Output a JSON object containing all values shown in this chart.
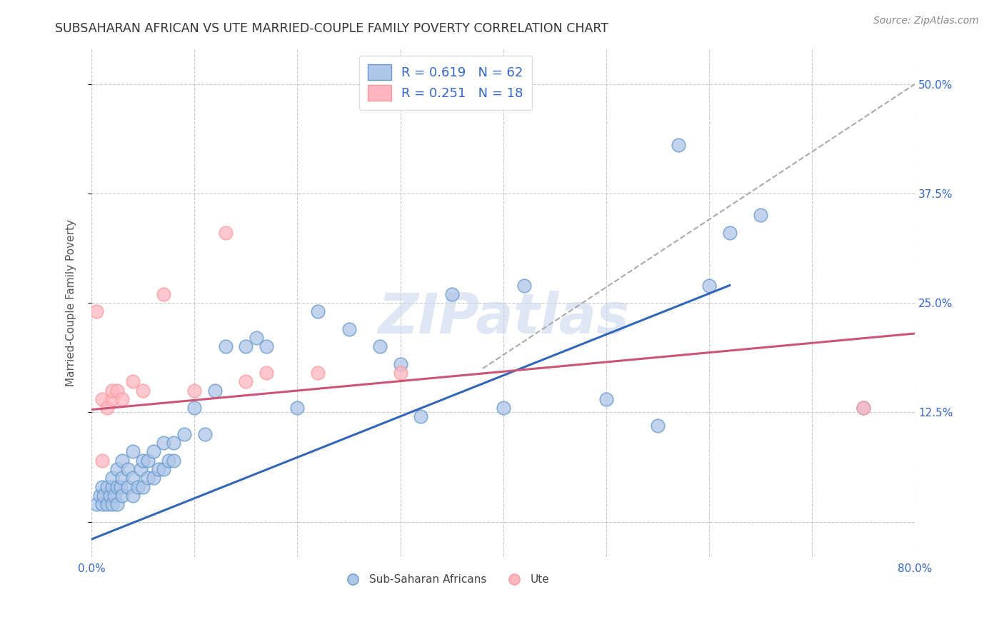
{
  "title": "SUBSAHARAN AFRICAN VS UTE MARRIED-COUPLE FAMILY POVERTY CORRELATION CHART",
  "source": "Source: ZipAtlas.com",
  "ylabel": "Married-Couple Family Poverty",
  "xlim": [
    0.0,
    0.8
  ],
  "ylim": [
    -0.04,
    0.54
  ],
  "xticks": [
    0.0,
    0.1,
    0.2,
    0.3,
    0.4,
    0.5,
    0.6,
    0.7,
    0.8
  ],
  "xticklabels": [
    "0.0%",
    "",
    "",
    "",
    "",
    "",
    "",
    "",
    "80.0%"
  ],
  "yticks": [
    0.0,
    0.125,
    0.25,
    0.375,
    0.5
  ],
  "yticklabels": [
    "",
    "12.5%",
    "25.0%",
    "37.5%",
    "50.0%"
  ],
  "grid_color": "#c8c8c8",
  "background_color": "#ffffff",
  "watermark": "ZIPatlas",
  "blue_scatter_color": "#aec6e8",
  "blue_edge_color": "#6699cc",
  "pink_scatter_color": "#ffb6c1",
  "pink_edge_color": "#ff9999",
  "line_blue": "#3366bb",
  "line_pink": "#cc5577",
  "dash_line_color": "#aaaaaa",
  "blue_scatter_x": [
    0.005,
    0.008,
    0.01,
    0.01,
    0.012,
    0.015,
    0.015,
    0.018,
    0.02,
    0.02,
    0.02,
    0.022,
    0.025,
    0.025,
    0.025,
    0.028,
    0.03,
    0.03,
    0.03,
    0.035,
    0.035,
    0.04,
    0.04,
    0.04,
    0.045,
    0.048,
    0.05,
    0.05,
    0.055,
    0.055,
    0.06,
    0.06,
    0.065,
    0.07,
    0.07,
    0.075,
    0.08,
    0.08,
    0.09,
    0.1,
    0.11,
    0.12,
    0.13,
    0.15,
    0.16,
    0.17,
    0.2,
    0.22,
    0.25,
    0.28,
    0.3,
    0.32,
    0.35,
    0.4,
    0.42,
    0.5,
    0.55,
    0.57,
    0.6,
    0.62,
    0.65,
    0.75
  ],
  "blue_scatter_y": [
    0.02,
    0.03,
    0.02,
    0.04,
    0.03,
    0.02,
    0.04,
    0.03,
    0.02,
    0.04,
    0.05,
    0.03,
    0.02,
    0.04,
    0.06,
    0.04,
    0.03,
    0.05,
    0.07,
    0.04,
    0.06,
    0.03,
    0.05,
    0.08,
    0.04,
    0.06,
    0.04,
    0.07,
    0.05,
    0.07,
    0.05,
    0.08,
    0.06,
    0.06,
    0.09,
    0.07,
    0.07,
    0.09,
    0.1,
    0.13,
    0.1,
    0.15,
    0.2,
    0.2,
    0.21,
    0.2,
    0.13,
    0.24,
    0.22,
    0.2,
    0.18,
    0.12,
    0.26,
    0.13,
    0.27,
    0.14,
    0.11,
    0.43,
    0.27,
    0.33,
    0.35,
    0.13
  ],
  "pink_scatter_x": [
    0.005,
    0.01,
    0.01,
    0.015,
    0.02,
    0.02,
    0.025,
    0.03,
    0.04,
    0.05,
    0.07,
    0.1,
    0.13,
    0.15,
    0.17,
    0.22,
    0.3,
    0.75
  ],
  "pink_scatter_y": [
    0.24,
    0.07,
    0.14,
    0.13,
    0.14,
    0.15,
    0.15,
    0.14,
    0.16,
    0.15,
    0.26,
    0.15,
    0.33,
    0.16,
    0.17,
    0.17,
    0.17,
    0.13
  ],
  "blue_line_x": [
    0.0,
    0.62
  ],
  "blue_line_y": [
    -0.02,
    0.27
  ],
  "pink_line_x": [
    0.0,
    0.8
  ],
  "pink_line_y": [
    0.128,
    0.215
  ],
  "dash_line_x": [
    0.38,
    0.8
  ],
  "dash_line_y": [
    0.175,
    0.5
  ]
}
